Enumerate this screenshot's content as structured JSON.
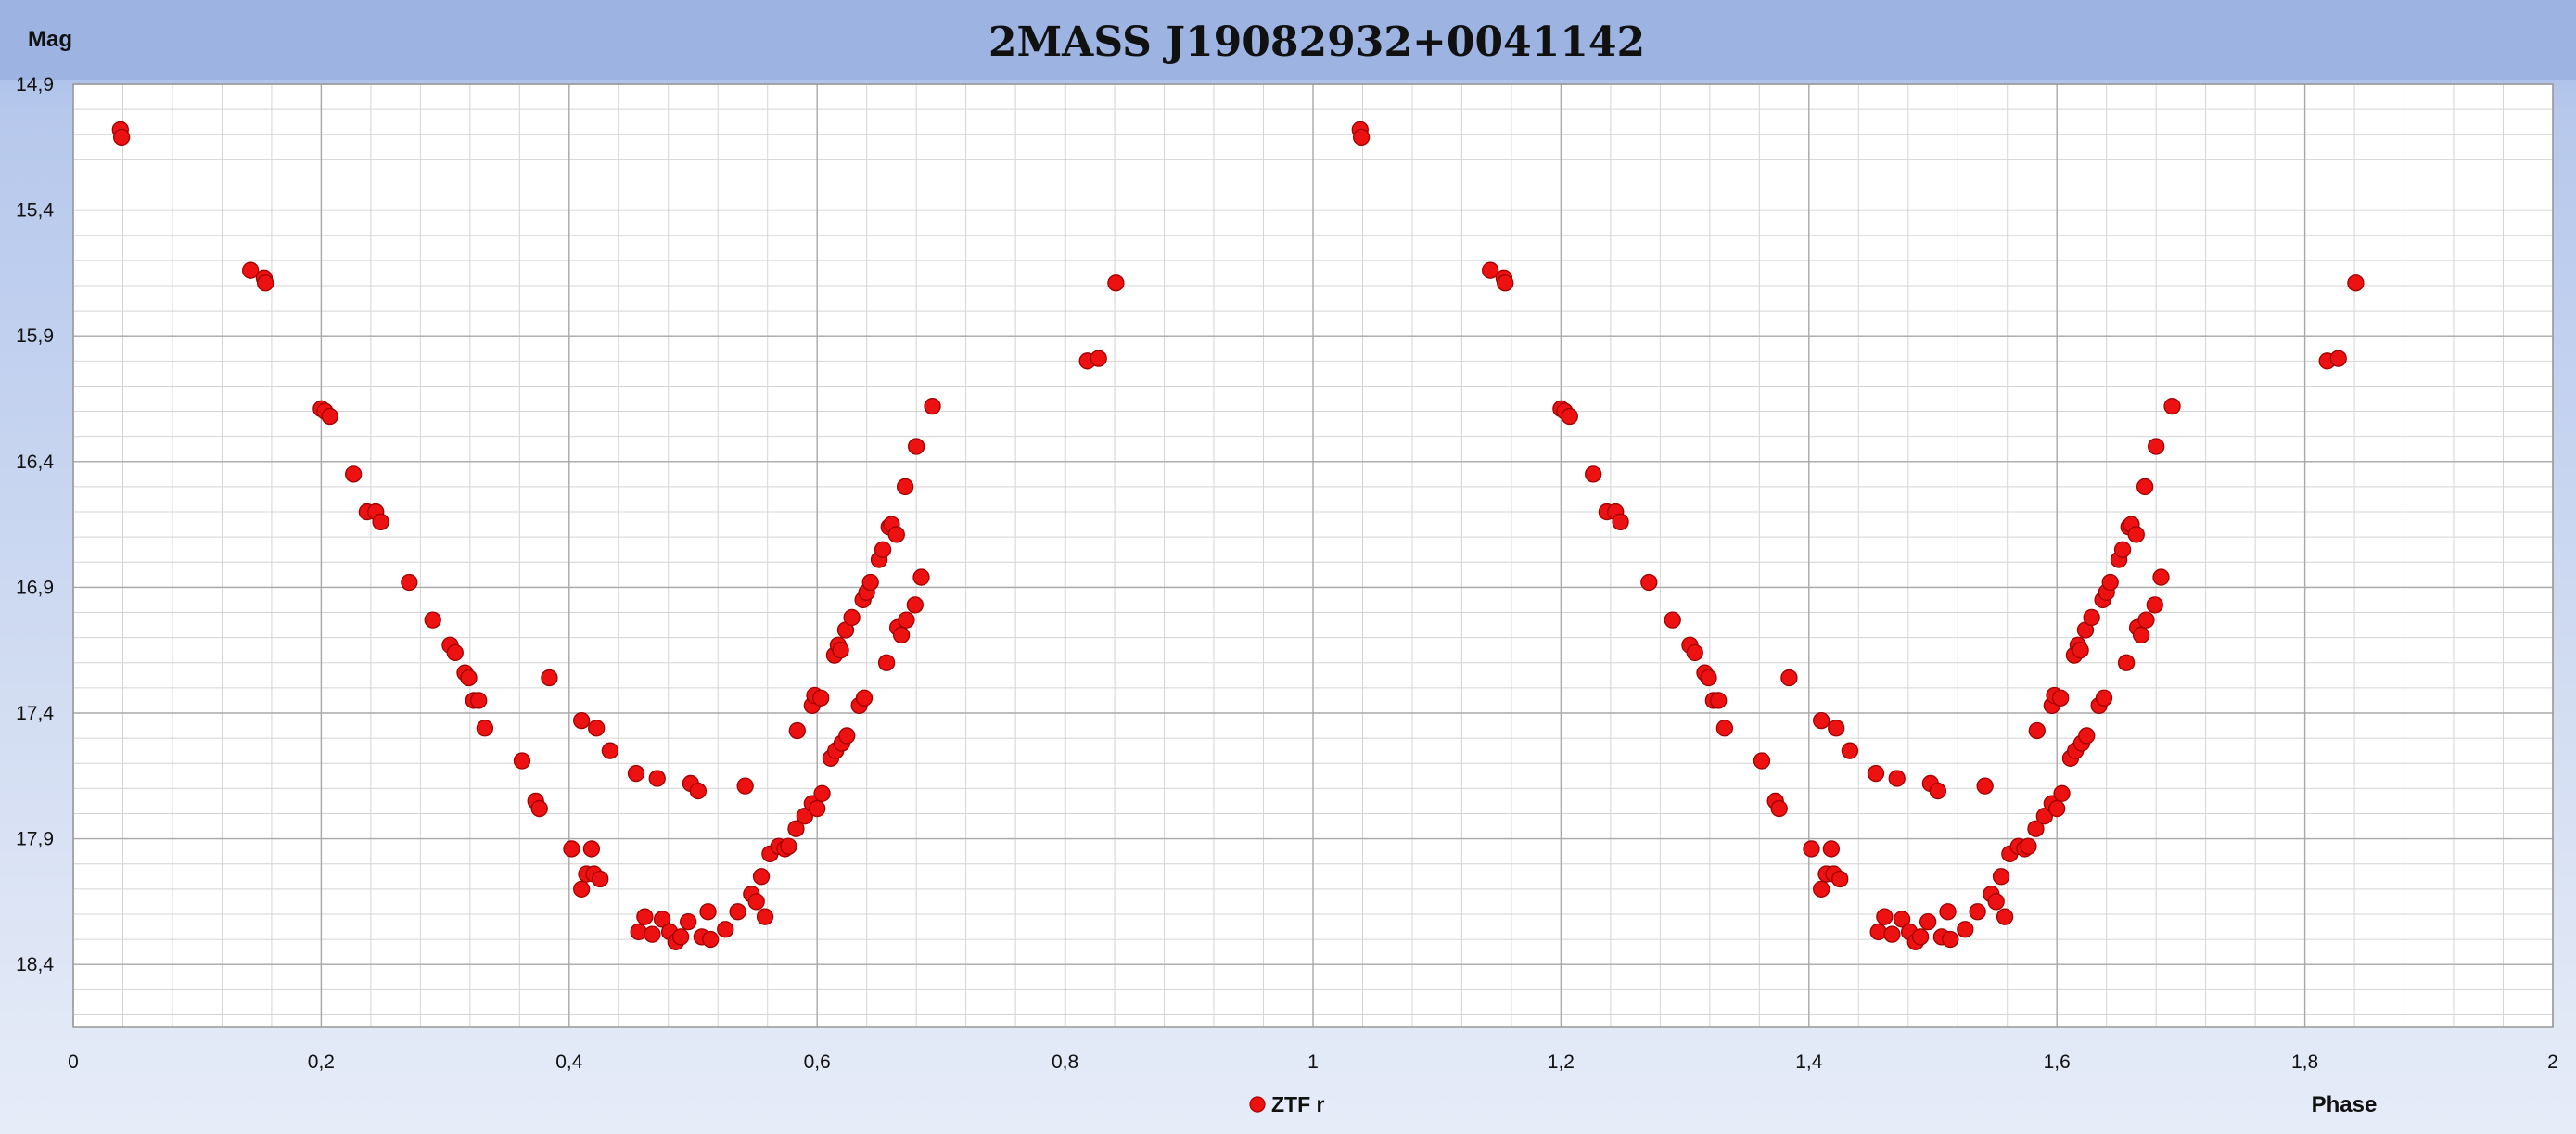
{
  "chart_data": {
    "type": "scatter",
    "title": "2MASS J19082932+0041142",
    "xlabel": "Phase",
    "ylabel": "Mag",
    "xlim": [
      0,
      2
    ],
    "ylim": [
      14.9,
      18.65
    ],
    "y_inverted": true,
    "grid": true,
    "x_ticks": [
      "0",
      "0,2",
      "0,4",
      "0,6",
      "0,8",
      "1",
      "1,2",
      "1,4",
      "1,6",
      "1,8",
      "2"
    ],
    "y_ticks": [
      "14,9",
      "15,4",
      "15,9",
      "16,4",
      "16,9",
      "17,4",
      "17,9",
      "18,4"
    ],
    "legend_position": "bottom-center",
    "marker_color": "#ee1111",
    "series": [
      {
        "name": "ZTF r",
        "points": [
          [
            0.038,
            15.08
          ],
          [
            0.039,
            15.11
          ],
          [
            0.143,
            15.64
          ],
          [
            0.154,
            15.67
          ],
          [
            0.155,
            15.69
          ],
          [
            0.2,
            16.19
          ],
          [
            0.203,
            16.2
          ],
          [
            0.207,
            16.22
          ],
          [
            0.226,
            16.45
          ],
          [
            0.237,
            16.6
          ],
          [
            0.244,
            16.6
          ],
          [
            0.248,
            16.64
          ],
          [
            0.271,
            16.88
          ],
          [
            0.29,
            17.03
          ],
          [
            0.304,
            17.13
          ],
          [
            0.308,
            17.16
          ],
          [
            0.316,
            17.24
          ],
          [
            0.319,
            17.26
          ],
          [
            0.323,
            17.35
          ],
          [
            0.327,
            17.35
          ],
          [
            0.332,
            17.46
          ],
          [
            0.362,
            17.59
          ],
          [
            0.373,
            17.75
          ],
          [
            0.376,
            17.78
          ],
          [
            0.384,
            17.26
          ],
          [
            0.402,
            17.94
          ],
          [
            0.41,
            17.43
          ],
          [
            0.41,
            18.1
          ],
          [
            0.414,
            18.04
          ],
          [
            0.418,
            17.94
          ],
          [
            0.42,
            18.04
          ],
          [
            0.422,
            17.46
          ],
          [
            0.425,
            18.06
          ],
          [
            0.433,
            17.55
          ],
          [
            0.454,
            17.64
          ],
          [
            0.456,
            18.27
          ],
          [
            0.461,
            18.21
          ],
          [
            0.467,
            18.28
          ],
          [
            0.471,
            17.66
          ],
          [
            0.475,
            18.22
          ],
          [
            0.481,
            18.27
          ],
          [
            0.486,
            18.31
          ],
          [
            0.49,
            18.29
          ],
          [
            0.496,
            18.23
          ],
          [
            0.498,
            17.68
          ],
          [
            0.504,
            17.71
          ],
          [
            0.507,
            18.29
          ],
          [
            0.512,
            18.19
          ],
          [
            0.514,
            18.3
          ],
          [
            0.526,
            18.26
          ],
          [
            0.536,
            18.19
          ],
          [
            0.542,
            17.69
          ],
          [
            0.547,
            18.12
          ],
          [
            0.551,
            18.15
          ],
          [
            0.555,
            18.05
          ],
          [
            0.558,
            18.21
          ],
          [
            0.562,
            17.96
          ],
          [
            0.569,
            17.93
          ],
          [
            0.574,
            17.94
          ],
          [
            0.577,
            17.93
          ],
          [
            0.583,
            17.86
          ],
          [
            0.584,
            17.47
          ],
          [
            0.59,
            17.81
          ],
          [
            0.596,
            17.37
          ],
          [
            0.596,
            17.76
          ],
          [
            0.598,
            17.33
          ],
          [
            0.6,
            17.78
          ],
          [
            0.603,
            17.34
          ],
          [
            0.604,
            17.72
          ],
          [
            0.611,
            17.58
          ],
          [
            0.614,
            17.17
          ],
          [
            0.615,
            17.55
          ],
          [
            0.617,
            17.13
          ],
          [
            0.619,
            17.15
          ],
          [
            0.62,
            17.52
          ],
          [
            0.623,
            17.07
          ],
          [
            0.624,
            17.49
          ],
          [
            0.628,
            17.02
          ],
          [
            0.634,
            17.37
          ],
          [
            0.637,
            16.95
          ],
          [
            0.638,
            17.34
          ],
          [
            0.64,
            16.92
          ],
          [
            0.643,
            16.88
          ],
          [
            0.65,
            16.79
          ],
          [
            0.653,
            16.75
          ],
          [
            0.656,
            17.2
          ],
          [
            0.658,
            16.66
          ],
          [
            0.66,
            16.65
          ],
          [
            0.664,
            16.69
          ],
          [
            0.665,
            17.06
          ],
          [
            0.668,
            17.09
          ],
          [
            0.671,
            16.5
          ],
          [
            0.672,
            17.03
          ],
          [
            0.679,
            16.97
          ],
          [
            0.68,
            16.34
          ],
          [
            0.684,
            16.86
          ],
          [
            0.693,
            16.18
          ],
          [
            0.818,
            16.0
          ],
          [
            0.827,
            15.99
          ],
          [
            0.841,
            15.69
          ]
        ]
      }
    ]
  }
}
